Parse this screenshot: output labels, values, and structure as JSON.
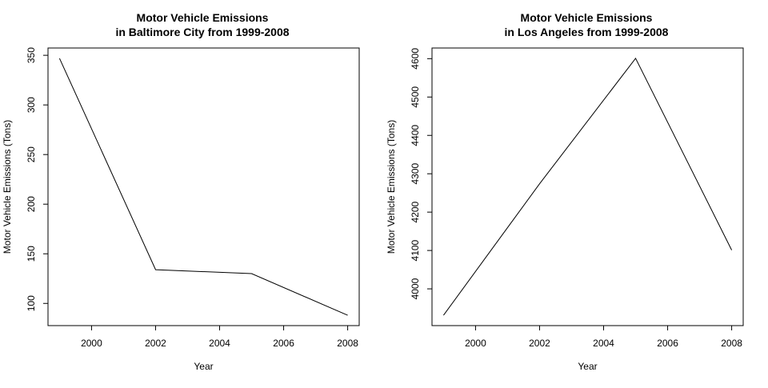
{
  "chart_data": [
    {
      "type": "line",
      "title": "Motor Vehicle Emissions",
      "subtitle": "in Baltimore City from 1999-2008",
      "xlabel": "Year",
      "ylabel": "Motor Vehicle Emissions (Tons)",
      "x": [
        1999,
        2002,
        2005,
        2008
      ],
      "series": [
        {
          "values": [
            347,
            134,
            130,
            88
          ]
        }
      ],
      "xticks": [
        "2000",
        "2002",
        "2004",
        "2006",
        "2008"
      ],
      "yticks": [
        "100",
        "150",
        "200",
        "250",
        "300",
        "350"
      ],
      "xlim": [
        1998.64,
        2008.36
      ],
      "ylim": [
        77.64,
        357.36
      ],
      "line_color": "#000000",
      "grid": false,
      "legend": "none"
    },
    {
      "type": "line",
      "title": "Motor Vehicle Emissions",
      "subtitle": "in Los Angeles from 1999-2008",
      "xlabel": "Year",
      "ylabel": "Motor Vehicle Emissions (Tons)",
      "x": [
        1999,
        2002,
        2005,
        2008
      ],
      "series": [
        {
          "values": [
            3931,
            4274,
            4601,
            4101
          ]
        }
      ],
      "xticks": [
        "2000",
        "2002",
        "2004",
        "2006",
        "2008"
      ],
      "yticks": [
        "4000",
        "4100",
        "4200",
        "4300",
        "4400",
        "4500",
        "4600"
      ],
      "xlim": [
        1998.64,
        2008.36
      ],
      "ylim": [
        3904.2,
        4627.8
      ],
      "line_color": "#000000",
      "grid": false,
      "legend": "none"
    }
  ]
}
